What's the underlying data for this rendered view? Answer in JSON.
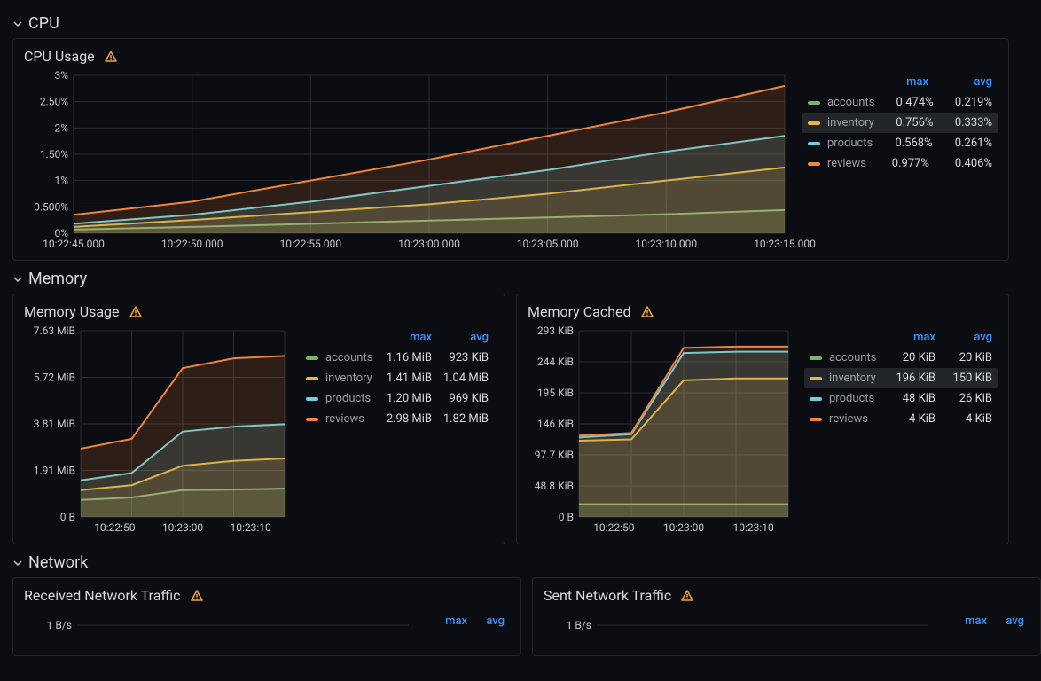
{
  "colors": {
    "bg": "#0b0d12",
    "grid": "#2a2d33",
    "axis": "#c7c9cb",
    "link": "#3794ff",
    "warn": "#f2a73d",
    "series": {
      "accounts": "#7eb26d",
      "inventory": "#eab839",
      "products": "#6ed0e0",
      "reviews": "#ef843c"
    }
  },
  "sections": {
    "cpu": "CPU",
    "memory": "Memory",
    "network": "Network"
  },
  "cpu_usage": {
    "title": "CPU Usage",
    "type": "area-line",
    "x_labels": [
      "10:22:45.000",
      "10:22:50.000",
      "10:22:55.000",
      "10:23:00.000",
      "10:23:05.000",
      "10:23:10.000",
      "10:23:15.000"
    ],
    "y_ticks": [
      "0%",
      "0.500%",
      "1%",
      "1.50%",
      "2%",
      "2.50%",
      "3%"
    ],
    "y_min": 0,
    "y_max": 3,
    "series": [
      {
        "key": "accounts",
        "name": "accounts",
        "values": [
          0.07,
          0.12,
          0.18,
          0.24,
          0.3,
          0.36,
          0.44
        ],
        "max": "0.474%",
        "avg": "0.219%"
      },
      {
        "key": "inventory",
        "name": "inventory",
        "values": [
          0.12,
          0.25,
          0.4,
          0.55,
          0.75,
          1.0,
          1.25
        ],
        "max": "0.756%",
        "avg": "0.333%",
        "highlight": true
      },
      {
        "key": "products",
        "name": "products",
        "values": [
          0.18,
          0.35,
          0.6,
          0.9,
          1.2,
          1.55,
          1.85
        ],
        "max": "0.568%",
        "avg": "0.261%"
      },
      {
        "key": "reviews",
        "name": "reviews",
        "values": [
          0.35,
          0.6,
          1.0,
          1.4,
          1.85,
          2.3,
          2.8
        ],
        "max": "0.977%",
        "avg": "0.406%"
      }
    ],
    "legend_cols": [
      "max",
      "avg"
    ]
  },
  "mem_usage": {
    "title": "Memory Usage",
    "type": "area-line",
    "x_labels": [
      "10:22:50",
      "10:23:00",
      "10:23:10"
    ],
    "y_ticks": [
      "0 B",
      "1.91 MiB",
      "3.81 MiB",
      "5.72 MiB",
      "7.63 MiB"
    ],
    "y_min": 0,
    "y_max": 7.63,
    "series": [
      {
        "key": "accounts",
        "name": "accounts",
        "values": [
          0.7,
          0.8,
          1.1,
          1.12,
          1.16
        ],
        "max": "1.16 MiB",
        "avg": "923 KiB"
      },
      {
        "key": "inventory",
        "name": "inventory",
        "values": [
          1.1,
          1.3,
          2.1,
          2.3,
          2.4
        ],
        "max": "1.41 MiB",
        "avg": "1.04 MiB"
      },
      {
        "key": "products",
        "name": "products",
        "values": [
          1.5,
          1.8,
          3.5,
          3.7,
          3.8
        ],
        "max": "1.20 MiB",
        "avg": "969 KiB"
      },
      {
        "key": "reviews",
        "name": "reviews",
        "values": [
          2.8,
          3.2,
          6.1,
          6.5,
          6.6
        ],
        "max": "2.98 MiB",
        "avg": "1.82 MiB"
      }
    ],
    "legend_cols": [
      "max",
      "avg"
    ]
  },
  "mem_cached": {
    "title": "Memory Cached",
    "type": "area-line",
    "x_labels": [
      "10:22:50",
      "10:23:00",
      "10:23:10"
    ],
    "y_ticks": [
      "0 B",
      "48.8 KiB",
      "97.7 KiB",
      "146 KiB",
      "195 KiB",
      "244 KiB",
      "293 KiB"
    ],
    "y_min": 0,
    "y_max": 293,
    "series": [
      {
        "key": "accounts",
        "name": "accounts",
        "values": [
          20,
          20,
          20,
          20,
          20
        ],
        "max": "20 KiB",
        "avg": "20 KiB"
      },
      {
        "key": "inventory",
        "name": "inventory",
        "values": [
          120,
          122,
          215,
          218,
          218
        ],
        "max": "196 KiB",
        "avg": "150 KiB",
        "highlight": true
      },
      {
        "key": "products",
        "name": "products",
        "values": [
          125,
          130,
          258,
          260,
          260
        ],
        "max": "48 KiB",
        "avg": "26 KiB"
      },
      {
        "key": "reviews",
        "name": "reviews",
        "values": [
          128,
          132,
          266,
          268,
          268
        ],
        "max": "4 KiB",
        "avg": "4 KiB"
      }
    ],
    "legend_cols": [
      "max",
      "avg"
    ]
  },
  "net_rx": {
    "title": "Received Network Traffic",
    "type": "area-line",
    "y_ticks": [
      "1 B/s"
    ],
    "legend_cols": [
      "max",
      "avg"
    ]
  },
  "net_tx": {
    "title": "Sent Network Traffic",
    "type": "area-line",
    "y_ticks": [
      "1 B/s"
    ],
    "legend_cols": [
      "max",
      "avg"
    ]
  }
}
